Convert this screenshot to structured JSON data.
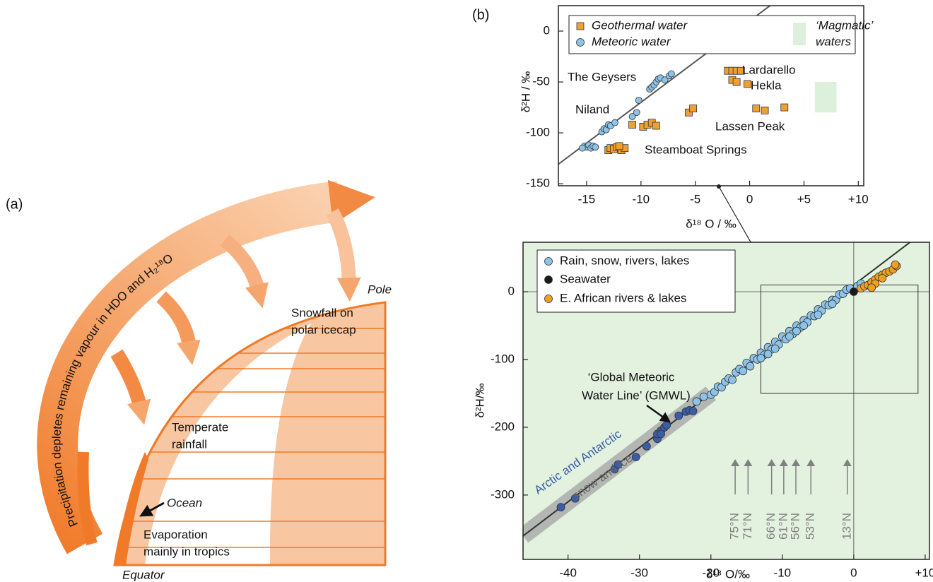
{
  "diagram": {
    "panel_label": "(a)",
    "arc_text": "Precipitation depletes remaining vapour in HDO and H₂¹⁸O",
    "pole": "Pole",
    "snowfall": [
      "Snowfall on",
      "polar icecap"
    ],
    "temperate": [
      "Temperate",
      "rainfall"
    ],
    "ocean": "Ocean",
    "evaporation": [
      "Evaporation",
      "mainly in tropics"
    ],
    "equator": "Equator"
  },
  "panel_b_label": "(b)",
  "chart_data": [
    {
      "type": "scatter",
      "xlabel": "δ¹⁸ O / ‰",
      "ylabel": "δ²H / ‰",
      "xlim": [
        -17.6,
        10.5
      ],
      "ylim": [
        -152,
        25
      ],
      "xticks": [
        -15,
        -10,
        -5,
        0,
        {
          "value": 5,
          "label": "+5"
        },
        {
          "value": 10,
          "label": "+10"
        }
      ],
      "yticks": [
        0,
        -50,
        -100,
        -150
      ],
      "line": {
        "slope": 8,
        "intercept": 10,
        "color": "#555555"
      },
      "regions": [
        {
          "label": [
            "‘Magmatic’",
            "waters"
          ],
          "color": "#dcf0dc",
          "x": [
            6,
            8
          ],
          "y": [
            -80,
            -50
          ]
        }
      ],
      "series": [
        {
          "name": "Geothermal water",
          "marker": "square",
          "color": "#f0a030",
          "x": [
            -13,
            -12.8,
            -12.5,
            -12.2,
            -11.8,
            -11.5,
            -12,
            -10.8,
            -9.8,
            -9.4,
            -9,
            -8.6,
            -5.6,
            -5.2,
            -2,
            -1.6,
            -1.2,
            -0.8,
            -1.6,
            -1.2,
            -0.2,
            0.6,
            1.4,
            3.2
          ],
          "values": [
            -117,
            -115,
            -116,
            -114,
            -117,
            -115,
            -113,
            -92,
            -94,
            -92,
            -90,
            -93,
            -80,
            -76,
            -39,
            -39,
            -39,
            -39,
            -48,
            -50,
            -52,
            -76,
            -78,
            -75
          ]
        },
        {
          "name": "Meteoric water",
          "marker": "circle",
          "color": "#8dc3e8",
          "x": [
            -15.2,
            -15,
            -14.8,
            -14.6,
            -14.4,
            -14.2,
            -15.4,
            -13.6,
            -13.4,
            -13.2,
            -13,
            -12.8,
            -12.4,
            -10.4,
            -10.8,
            -10.2,
            -9.2,
            -9,
            -8.8,
            -8.6,
            -8.4,
            -8.2,
            -7.8,
            -7.4,
            -7.2
          ],
          "values": [
            -113,
            -114,
            -112,
            -115,
            -113,
            -114,
            -115,
            -99,
            -96,
            -97,
            -92,
            -93,
            -90,
            -80,
            -84,
            -68,
            -57,
            -55,
            -53,
            -50,
            -47,
            -46,
            -48,
            -44,
            -42
          ]
        }
      ],
      "annotations": [
        {
          "text": "The Geysers",
          "color": "#111111"
        },
        {
          "text": "Niland",
          "color": "#111111"
        },
        {
          "text": "Lardarello",
          "color": "#111111"
        },
        {
          "text": "Hekla",
          "color": "#111111"
        },
        {
          "text": "Lassen Peak",
          "color": "#111111"
        },
        {
          "text": "Steamboat Springs",
          "color": "#111111"
        }
      ]
    },
    {
      "type": "scatter",
      "xlabel": "δ¹⁸ O/‰",
      "ylabel": "δ²H/‰",
      "xlim": [
        -46.3,
        10.6
      ],
      "ylim": [
        -395,
        73
      ],
      "xticks": [
        -40,
        -30,
        -20,
        -10,
        0,
        {
          "value": 10,
          "label": "+10"
        }
      ],
      "yticks": [
        0,
        -100,
        -200,
        -300
      ],
      "background": "#e3f1df",
      "zero_lines": true,
      "line": {
        "slope": 8,
        "intercept": 10,
        "color": "#333333"
      },
      "band": {
        "color": "#a8a8a8",
        "x": [
          -46.3,
          -20
        ]
      },
      "inset": {
        "x": [
          -13,
          9
        ],
        "y": [
          -150,
          10
        ]
      },
      "series": [
        {
          "name": "Rain, snow, rivers, lakes",
          "marker": "circle",
          "color": "#8dc3e8",
          "x": [
            -22,
            -21,
            -20,
            -19.5,
            -19,
            -18.5,
            -18,
            -17.5,
            -17,
            -16.5,
            -16,
            -15.5,
            -15,
            -14.5,
            -14,
            -13.5,
            -13,
            -12.5,
            -12,
            -11.5,
            -11,
            -10.5,
            -10,
            -9.5,
            -9,
            -8.5,
            -8,
            -7.5,
            -7,
            -6.5,
            -6,
            -5.5,
            -5,
            -4.5,
            -4,
            -3.5,
            -3,
            -2.5,
            -2,
            -1.5,
            -1,
            -0.5,
            0.5,
            1,
            -13,
            -11,
            -9,
            -7,
            -5,
            -3,
            -12,
            -8
          ],
          "values": [
            -162,
            -155,
            -152,
            -148,
            -140,
            -141,
            -133,
            -128,
            -130,
            -119,
            -114,
            -117,
            -105,
            -110,
            -98,
            -100,
            -90,
            -93,
            -82,
            -85,
            -74,
            -78,
            -66,
            -70,
            -58,
            -62,
            -50,
            -53,
            -42,
            -45,
            -35,
            -36,
            -26,
            -28,
            -19,
            -20,
            -12,
            -12,
            -4,
            -3,
            3,
            5,
            8,
            12,
            -98,
            -84,
            -66,
            -50,
            -34,
            -18,
            -92,
            -58
          ]
        },
        {
          "marker": "circle",
          "color": "#3a5da8",
          "x": [
            -41,
            -39,
            -33.5,
            -33,
            -30.5,
            -29,
            -27.5,
            -27.5,
            -27,
            -26.5,
            -26.2,
            -24.5,
            -23.5,
            -23,
            -22.5,
            -27
          ],
          "values": [
            -318,
            -305,
            -262,
            -255,
            -244,
            -228,
            -217,
            -210,
            -205,
            -200,
            -197,
            -183,
            -177,
            -175,
            -176,
            -210
          ]
        },
        {
          "name": "Seawater",
          "marker": "circle",
          "color": "#1a1a1a",
          "x": [
            0
          ],
          "values": [
            0
          ]
        },
        {
          "name": "E. African rivers & lakes",
          "marker": "circle",
          "color": "#f0a020",
          "x": [
            1,
            1.5,
            2,
            2.5,
            3,
            3.5,
            4,
            4.5,
            5,
            5.5,
            6,
            5.8,
            3,
            4,
            2.5
          ],
          "values": [
            5,
            8,
            10,
            14,
            18,
            22,
            25,
            28,
            30,
            33,
            38,
            40,
            12,
            20,
            6
          ]
        }
      ],
      "annotations": [
        {
          "text": [
            "‘Global Meteoric",
            "Water Line’ (GMWL)"
          ],
          "color": "#111111"
        },
        {
          "text": "Arctic and Antarctic",
          "color": "#3a5da8"
        },
        {
          "text": "snow and ice",
          "color": "#666666"
        }
      ],
      "latitudes": {
        "color": "#808080",
        "items": [
          {
            "label": "75°N",
            "x": -16.6
          },
          {
            "label": "71°N",
            "x": -14.8
          },
          {
            "label": "66°N",
            "x": -11.5
          },
          {
            "label": "61°N",
            "x": -9.8
          },
          {
            "label": "56°N",
            "x": -8.1
          },
          {
            "label": "53°N",
            "x": -6
          },
          {
            "label": "13°N",
            "x": -0.9
          }
        ]
      }
    }
  ]
}
